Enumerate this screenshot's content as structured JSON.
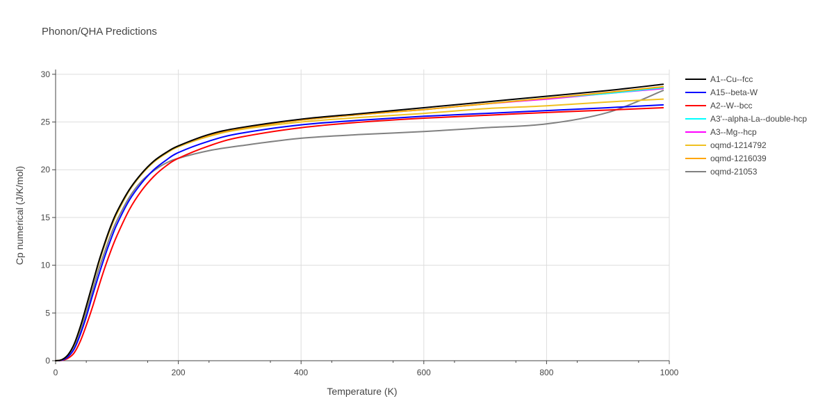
{
  "chart_data": {
    "type": "line",
    "title": "Phonon/QHA Predictions",
    "xlabel": "Temperature (K)",
    "ylabel": "Cp numerical (J/K/mol)",
    "xlim": [
      0,
      1000
    ],
    "ylim": [
      0,
      30.5
    ],
    "xticks": [
      0,
      200,
      400,
      600,
      800,
      1000
    ],
    "yticks": [
      0,
      5,
      10,
      15,
      20,
      25,
      30
    ],
    "grid": true,
    "legend_position": "top-right-outside",
    "x": [
      0,
      10,
      20,
      30,
      40,
      50,
      60,
      70,
      80,
      90,
      100,
      120,
      140,
      160,
      180,
      200,
      250,
      300,
      400,
      500,
      600,
      700,
      800,
      900,
      990
    ],
    "series": [
      {
        "name": "A1--Cu--fcc",
        "color": "#000000",
        "values": [
          0,
          0.1,
          0.6,
          1.7,
          3.5,
          5.7,
          8.0,
          10.3,
          12.3,
          14.1,
          15.6,
          17.9,
          19.6,
          20.9,
          21.8,
          22.5,
          23.7,
          24.4,
          25.3,
          25.9,
          26.5,
          27.1,
          27.7,
          28.3,
          28.95
        ]
      },
      {
        "name": "A15--beta-W",
        "color": "#0000ff",
        "values": [
          0,
          0.05,
          0.4,
          1.2,
          2.7,
          4.6,
          6.8,
          8.9,
          10.9,
          12.7,
          14.3,
          16.8,
          18.6,
          20.0,
          21.0,
          21.8,
          23.0,
          23.8,
          24.7,
          25.2,
          25.6,
          25.9,
          26.2,
          26.5,
          26.8
        ]
      },
      {
        "name": "A2--W--bcc",
        "color": "#ff0000",
        "values": [
          0,
          0.03,
          0.25,
          0.8,
          2.0,
          3.7,
          5.6,
          7.7,
          9.7,
          11.5,
          13.1,
          15.8,
          17.8,
          19.3,
          20.4,
          21.2,
          22.5,
          23.4,
          24.4,
          25.0,
          25.4,
          25.7,
          26.0,
          26.25,
          26.5
        ]
      },
      {
        "name": "A3'--alpha-La--double-hcp",
        "color": "#00ffff",
        "values": [
          0,
          0.1,
          0.6,
          1.7,
          3.5,
          5.7,
          8.0,
          10.3,
          12.3,
          14.1,
          15.6,
          17.9,
          19.6,
          20.9,
          21.8,
          22.5,
          23.6,
          24.3,
          25.2,
          25.8,
          26.3,
          26.9,
          27.5,
          28.0,
          28.6
        ]
      },
      {
        "name": "A3--Mg--hcp",
        "color": "#ff00ff",
        "values": [
          0,
          0.1,
          0.6,
          1.7,
          3.5,
          5.7,
          8.0,
          10.3,
          12.3,
          14.1,
          15.6,
          17.9,
          19.6,
          20.9,
          21.8,
          22.5,
          23.6,
          24.3,
          25.2,
          25.8,
          26.3,
          26.9,
          27.4,
          28.0,
          28.5
        ]
      },
      {
        "name": "oqmd-1214792",
        "color": "#f0c020",
        "values": [
          0,
          0.1,
          0.6,
          1.6,
          3.4,
          5.6,
          7.9,
          10.1,
          12.1,
          13.9,
          15.4,
          17.8,
          19.5,
          20.8,
          21.7,
          22.4,
          23.5,
          24.2,
          25.0,
          25.5,
          25.9,
          26.4,
          26.7,
          27.1,
          27.4
        ]
      },
      {
        "name": "oqmd-1216039",
        "color": "#ffa500",
        "values": [
          0,
          0.1,
          0.6,
          1.7,
          3.5,
          5.7,
          8.0,
          10.3,
          12.3,
          14.1,
          15.6,
          17.9,
          19.6,
          20.9,
          21.8,
          22.5,
          23.6,
          24.3,
          25.2,
          25.8,
          26.3,
          26.9,
          27.5,
          28.1,
          28.7
        ]
      },
      {
        "name": "oqmd-21053",
        "color": "#808080",
        "values": [
          0,
          0.08,
          0.5,
          1.5,
          3.1,
          5.1,
          7.3,
          9.5,
          11.4,
          13.2,
          14.7,
          17.1,
          18.8,
          19.9,
          20.7,
          21.2,
          22.0,
          22.5,
          23.3,
          23.7,
          24.0,
          24.4,
          24.8,
          26.0,
          28.3
        ]
      }
    ]
  }
}
